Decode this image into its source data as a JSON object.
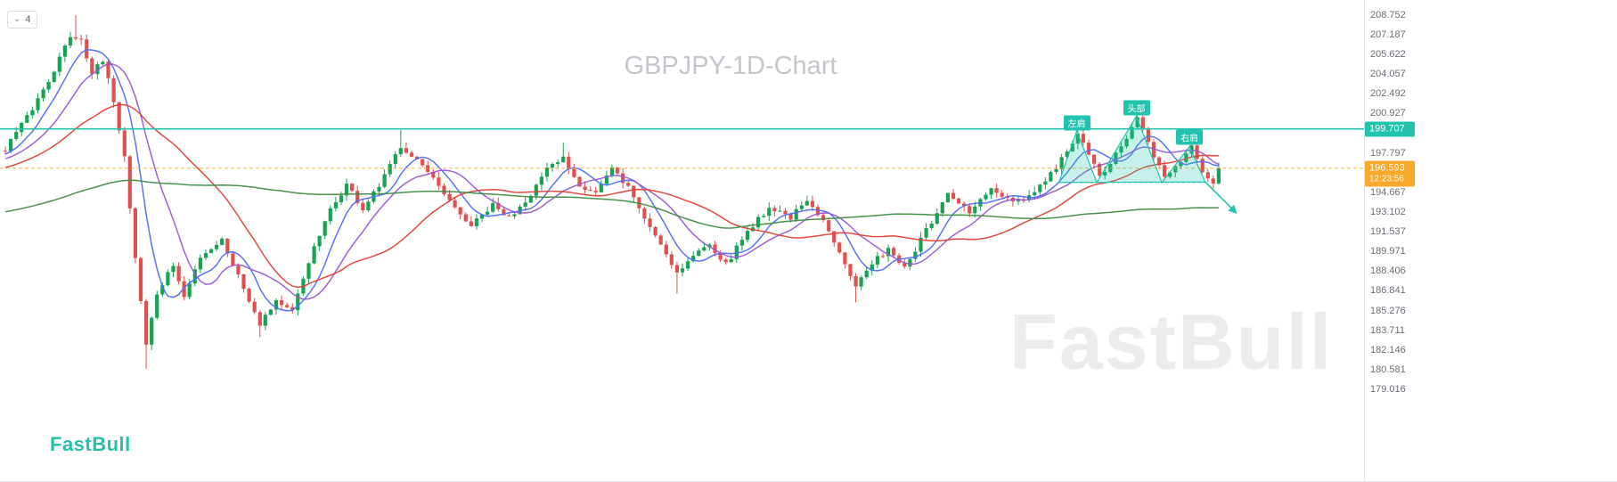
{
  "meta": {
    "title_watermark": "GBPJPY-1D-Chart",
    "brand": "FastBull",
    "brand_watermark": "FastBull"
  },
  "toolbar": {
    "collapsed_count": "4"
  },
  "colors": {
    "up": "#17a254",
    "down": "#e0504e",
    "teal": "#22c3ae",
    "orange": "#f7a82a",
    "axis_text": "#696e77",
    "watermark": "#ebecee",
    "title_watermark": "#c3c6cc"
  },
  "chart_data": {
    "type": "candlestick",
    "symbol": "GBPJPY",
    "timeframe": "1D",
    "title": "GBPJPY-1D-Chart",
    "y_axis": {
      "min": 179.016,
      "max": 208.752,
      "ticks": [
        {
          "label": "208.752",
          "value": 208.752
        },
        {
          "label": "207.187",
          "value": 207.187
        },
        {
          "label": "205.622",
          "value": 205.622
        },
        {
          "label": "204.057",
          "value": 204.057
        },
        {
          "label": "202.492",
          "value": 202.492
        },
        {
          "label": "200.927",
          "value": 200.927
        },
        {
          "label": "197.797",
          "value": 197.797
        },
        {
          "label": "194.667",
          "value": 194.667
        },
        {
          "label": "193.102",
          "value": 193.102
        },
        {
          "label": "191.537",
          "value": 191.537
        },
        {
          "label": "189.971",
          "value": 189.971
        },
        {
          "label": "188.406",
          "value": 188.406
        },
        {
          "label": "186.841",
          "value": 186.841
        },
        {
          "label": "185.276",
          "value": 185.276
        },
        {
          "label": "183.711",
          "value": 183.711
        },
        {
          "label": "182.146",
          "value": 182.146
        },
        {
          "label": "180.581",
          "value": 180.581
        },
        {
          "label": "179.016",
          "value": 179.016
        }
      ]
    },
    "price_line": {
      "label": "199.707",
      "value": 199.707
    },
    "current_price": {
      "label": "196.593",
      "value": 196.593,
      "countdown": "12:23:56"
    },
    "moving_averages": [
      {
        "period": 7,
        "color": "#4f6ef7"
      },
      {
        "period": 14,
        "color": "#9b59d0"
      },
      {
        "period": 30,
        "color": "#e14036"
      },
      {
        "period": 110,
        "color": "#3f8c43"
      }
    ],
    "annotations": [
      {
        "text": "左肩",
        "bar": 197.8,
        "price": 200.15
      },
      {
        "text": "头部",
        "bar": 208.8,
        "price": 201.4
      },
      {
        "text": "右肩",
        "bar": 218.6,
        "price": 199.05
      }
    ],
    "pattern": {
      "points": [
        [
          194.5,
          195.45
        ],
        [
          197.8,
          199.55
        ],
        [
          201.5,
          195.45
        ],
        [
          208.8,
          200.72
        ],
        [
          213.5,
          195.45
        ],
        [
          218.6,
          198.3
        ],
        [
          221.5,
          195.5
        ]
      ],
      "arrow_end": [
        227.2,
        193.05
      ],
      "neckline_price": 195.45
    },
    "candles": {
      "count": 225,
      "prehistory": 120,
      "seed": 42,
      "noise": 0.5,
      "wick": 0.45,
      "anchors": [
        [
          -120,
          188.5
        ],
        [
          -95,
          191.2
        ],
        [
          -70,
          190.2
        ],
        [
          -45,
          193.8
        ],
        [
          -20,
          196.2
        ],
        [
          -5,
          197.4
        ],
        [
          0,
          198.2
        ],
        [
          4,
          200.6
        ],
        [
          8,
          203.6
        ],
        [
          12,
          207.1
        ],
        [
          14,
          206.9
        ],
        [
          16,
          204.2
        ],
        [
          18,
          205.0
        ],
        [
          20,
          202.0
        ],
        [
          22,
          197.5
        ],
        [
          24,
          189.5
        ],
        [
          26,
          182.6
        ],
        [
          28,
          186.6
        ],
        [
          31,
          188.9
        ],
        [
          33,
          186.3
        ],
        [
          36,
          189.6
        ],
        [
          40,
          190.9
        ],
        [
          44,
          187.1
        ],
        [
          47,
          184.3
        ],
        [
          50,
          186.1
        ],
        [
          53,
          185.1
        ],
        [
          56,
          189.2
        ],
        [
          60,
          193.2
        ],
        [
          63,
          195.3
        ],
        [
          66,
          193.3
        ],
        [
          69,
          195.1
        ],
        [
          73,
          198.4
        ],
        [
          76,
          197.3
        ],
        [
          79,
          195.6
        ],
        [
          83,
          193.3
        ],
        [
          86,
          192.0
        ],
        [
          90,
          193.6
        ],
        [
          93,
          192.6
        ],
        [
          97,
          194.6
        ],
        [
          100,
          196.4
        ],
        [
          103,
          197.4
        ],
        [
          106,
          195.3
        ],
        [
          109,
          194.7
        ],
        [
          112,
          196.5
        ],
        [
          115,
          195.1
        ],
        [
          118,
          192.6
        ],
        [
          121,
          190.6
        ],
        [
          124,
          188.3
        ],
        [
          127,
          189.6
        ],
        [
          130,
          190.7
        ],
        [
          133,
          188.9
        ],
        [
          137,
          191.6
        ],
        [
          141,
          193.5
        ],
        [
          145,
          192.7
        ],
        [
          148,
          193.9
        ],
        [
          151,
          192.3
        ],
        [
          154,
          190.1
        ],
        [
          157,
          187.3
        ],
        [
          160,
          188.9
        ],
        [
          163,
          190.3
        ],
        [
          166,
          188.6
        ],
        [
          170,
          191.6
        ],
        [
          174,
          194.4
        ],
        [
          178,
          193.1
        ],
        [
          182,
          194.9
        ],
        [
          186,
          193.7
        ],
        [
          190,
          194.6
        ],
        [
          194,
          196.6
        ],
        [
          198,
          199.3
        ],
        [
          202,
          195.9
        ],
        [
          205,
          197.6
        ],
        [
          209,
          200.5
        ],
        [
          212,
          197.6
        ],
        [
          214,
          195.7
        ],
        [
          217,
          197.3
        ],
        [
          219,
          198.2
        ],
        [
          221,
          196.3
        ],
        [
          223,
          195.3
        ],
        [
          224,
          196.593
        ]
      ],
      "spikes": [
        {
          "bar": 13,
          "high": 208.75
        },
        {
          "bar": 26,
          "low": 180.65
        },
        {
          "bar": 47,
          "low": 183.15
        },
        {
          "bar": 73,
          "high": 199.62
        },
        {
          "bar": 103,
          "high": 198.62
        },
        {
          "bar": 124,
          "low": 186.62
        },
        {
          "bar": 157,
          "low": 185.92
        },
        {
          "bar": 198,
          "high": 199.82
        },
        {
          "bar": 209,
          "high": 200.93
        },
        {
          "bar": 219,
          "high": 198.62
        }
      ]
    }
  }
}
